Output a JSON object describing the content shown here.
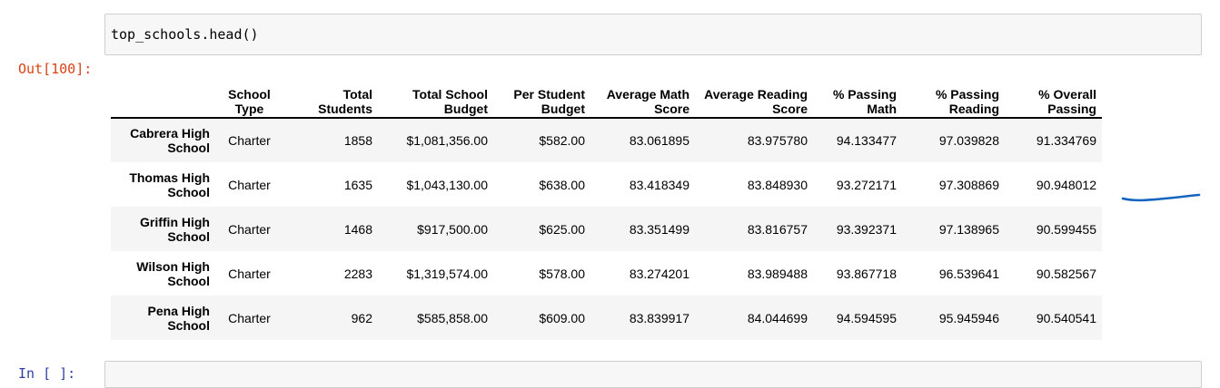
{
  "input_cell": {
    "code": "top_schools.head()"
  },
  "output_prompt": "Out[100]:",
  "next_prompt": "In [ ]:",
  "table": {
    "columns": [
      {
        "line1": "School",
        "line2": "Type"
      },
      {
        "line1": "Total",
        "line2": "Students"
      },
      {
        "line1": "Total School",
        "line2": "Budget"
      },
      {
        "line1": "Per Student",
        "line2": "Budget"
      },
      {
        "line1": "Average Math",
        "line2": "Score"
      },
      {
        "line1": "Average Reading",
        "line2": "Score"
      },
      {
        "line1": "% Passing",
        "line2": "Math"
      },
      {
        "line1": "% Passing",
        "line2": "Reading"
      },
      {
        "line1": "% Overall",
        "line2": "Passing"
      }
    ],
    "rows": [
      {
        "index": [
          "Cabrera High",
          "School"
        ],
        "cells": [
          "Charter",
          "1858",
          "$1,081,356.00",
          "$582.00",
          "83.061895",
          "83.975780",
          "94.133477",
          "97.039828",
          "91.334769"
        ]
      },
      {
        "index": [
          "Thomas High",
          "School"
        ],
        "cells": [
          "Charter",
          "1635",
          "$1,043,130.00",
          "$638.00",
          "83.418349",
          "83.848930",
          "93.272171",
          "97.308869",
          "90.948012"
        ]
      },
      {
        "index": [
          "Griffin High",
          "School"
        ],
        "cells": [
          "Charter",
          "1468",
          "$917,500.00",
          "$625.00",
          "83.351499",
          "83.816757",
          "93.392371",
          "97.138965",
          "90.599455"
        ]
      },
      {
        "index": [
          "Wilson High",
          "School"
        ],
        "cells": [
          "Charter",
          "2283",
          "$1,319,574.00",
          "$578.00",
          "83.274201",
          "83.989488",
          "93.867718",
          "96.539641",
          "90.582567"
        ]
      },
      {
        "index": [
          "Pena High",
          "School"
        ],
        "cells": [
          "Charter",
          "962",
          "$585,858.00",
          "$609.00",
          "83.839917",
          "84.044699",
          "94.594595",
          "95.945946",
          "90.540541"
        ]
      }
    ]
  },
  "annotation": {
    "color": "#1565c0"
  }
}
